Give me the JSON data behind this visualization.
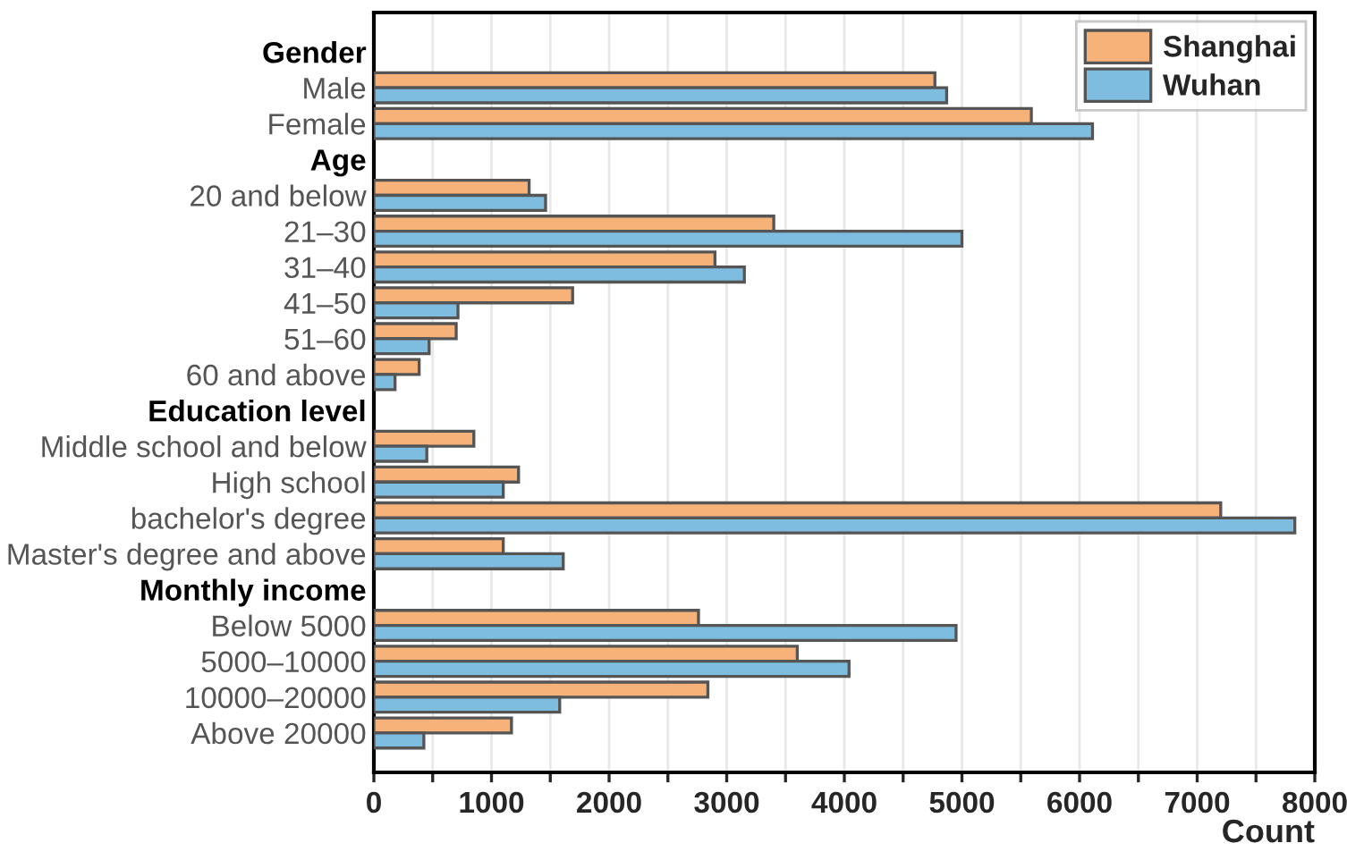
{
  "chart_data": {
    "type": "bar",
    "orientation": "horizontal",
    "xlabel": "Count",
    "categories": [
      "Gender",
      "Male",
      "Female",
      "Age",
      "20 and below",
      "21–30",
      "31–40",
      "41–50",
      "51–60",
      "60 and above",
      "Education level",
      "Middle school and below",
      "High school",
      "bachelor's degree",
      "Master's degree and above",
      "Monthly income",
      "Below 5000",
      "5000–10000",
      "10000–20000",
      "Above 20000"
    ],
    "series": [
      {
        "name": "Shanghai",
        "color": "#f7b27a",
        "values": [
          null,
          4770,
          5590,
          null,
          1320,
          3400,
          2900,
          1690,
          700,
          385,
          null,
          850,
          1230,
          7200,
          1100,
          null,
          2760,
          3600,
          2840,
          1170
        ]
      },
      {
        "name": "Wuhan",
        "color": "#7fbde0",
        "values": [
          null,
          4870,
          6110,
          null,
          1460,
          5000,
          3150,
          715,
          470,
          180,
          null,
          450,
          1100,
          7830,
          1610,
          null,
          4950,
          4040,
          1580,
          425
        ]
      }
    ],
    "xlim": [
      0,
      8000
    ],
    "xticks": [
      0,
      {
        "value": 500,
        "label": null
      },
      1000,
      {
        "value": 1500,
        "label": null
      },
      2000,
      {
        "value": 2500,
        "label": null
      },
      3000,
      {
        "value": 3500,
        "label": null
      },
      4000,
      {
        "value": 4500,
        "label": null
      },
      5000,
      {
        "value": 5500,
        "label": null
      },
      6000,
      {
        "value": 6500,
        "label": null
      },
      7000,
      {
        "value": 7500,
        "label": null
      },
      8000
    ],
    "grid": "x",
    "legend": "top right"
  }
}
